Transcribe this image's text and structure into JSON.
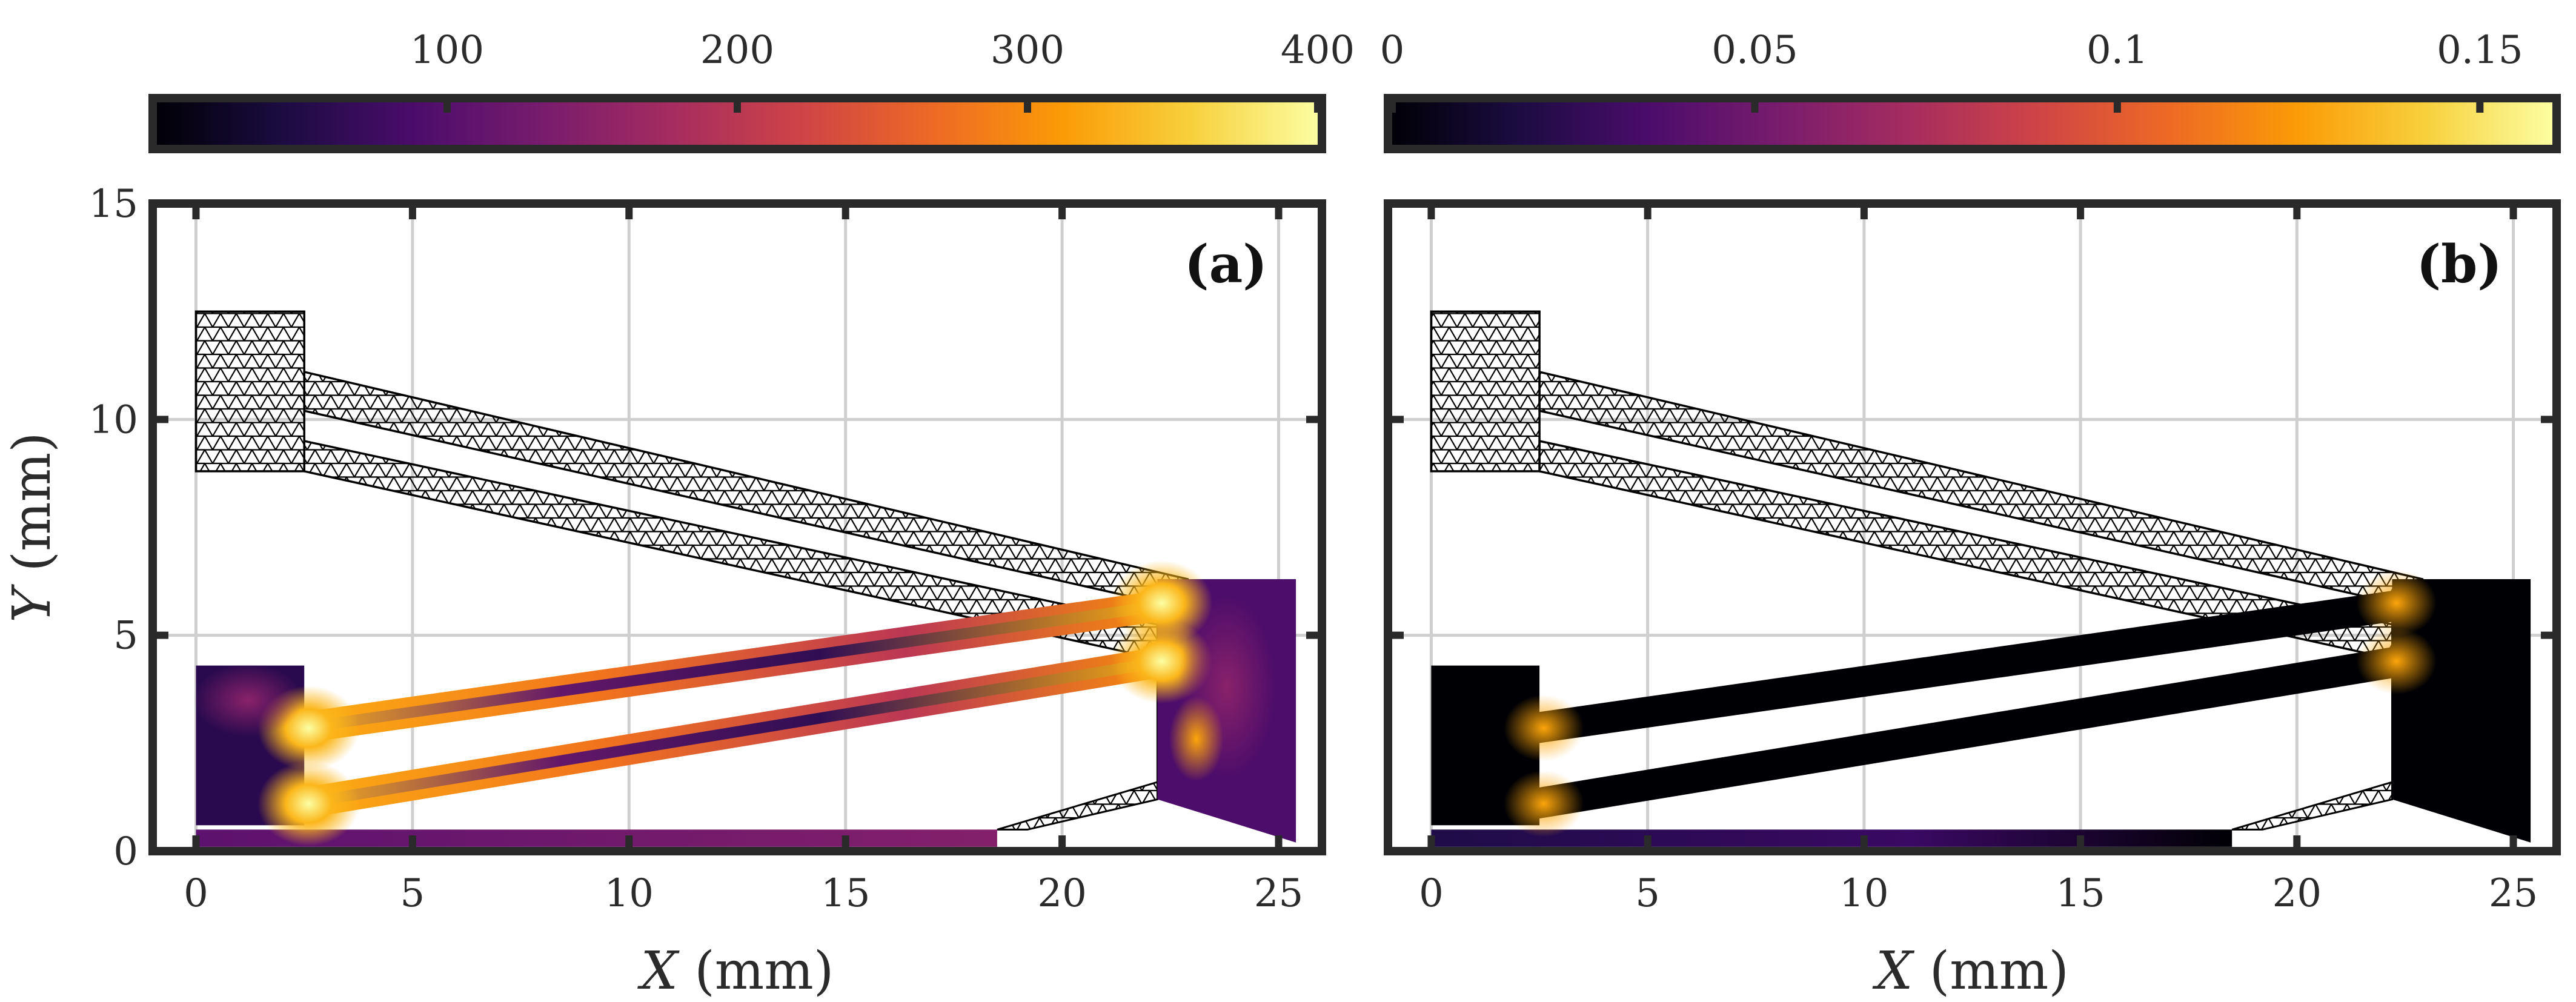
{
  "figure": {
    "description_colors": {
      "frame": "#2a2a2a",
      "grid": "#c8c8c8",
      "mesh": "#000000",
      "inferno_stops": [
        "#000004",
        "#1b0c41",
        "#4a0c6b",
        "#781c6d",
        "#a52c60",
        "#cf4446",
        "#ed6925",
        "#fb9b06",
        "#f7d13d",
        "#fcffa4"
      ]
    }
  },
  "chart_data": [
    {
      "type": "heatmap",
      "panel_label": "(a)",
      "xlabel_var": "X",
      "xlabel_unit": "(mm)",
      "ylabel_var": "Y",
      "ylabel_unit": "(mm)",
      "xlim": [
        -1,
        26
      ],
      "ylim": [
        0,
        15
      ],
      "xticks": [
        0,
        5,
        10,
        15,
        20,
        25
      ],
      "yticks": [
        0,
        5,
        10,
        15
      ],
      "grid": true,
      "colorbar": {
        "position": "top",
        "range": [
          0,
          400
        ],
        "ticks": [
          100,
          200,
          300,
          400
        ],
        "tick_labels": [
          "100",
          "200",
          "300",
          "400"
        ],
        "colormap": "inferno"
      },
      "undeformed_mesh": {
        "block": [
          [
            0,
            8.8
          ],
          [
            2.5,
            8.8
          ],
          [
            2.5,
            12.5
          ],
          [
            0,
            12.5
          ]
        ],
        "upper_beam": [
          [
            2.5,
            11.1
          ],
          [
            22.9,
            6.3
          ],
          [
            22.9,
            5.6
          ],
          [
            2.5,
            10.2
          ]
        ],
        "lower_beam": [
          [
            2.5,
            9.5
          ],
          [
            22.9,
            5.1
          ],
          [
            22.9,
            4.3
          ],
          [
            2.5,
            8.8
          ]
        ]
      },
      "deformed_shape": {
        "upper_beam_centerline": [
          [
            2.4,
            2.85
          ],
          [
            22.4,
            5.7
          ]
        ],
        "lower_beam_centerline": [
          [
            2.4,
            1.1
          ],
          [
            22.4,
            4.4
          ]
        ],
        "left_block": [
          [
            0,
            0.6
          ],
          [
            2.5,
            0.6
          ],
          [
            2.5,
            4.3
          ],
          [
            0,
            4.3
          ]
        ],
        "right_block": [
          [
            22.2,
            1.2
          ],
          [
            25.4,
            0.2
          ],
          [
            25.4,
            6.3
          ],
          [
            22.2,
            6.3
          ]
        ],
        "base_strip": [
          [
            0,
            0.1
          ],
          [
            18.5,
            0.1
          ],
          [
            18.5,
            0.5
          ],
          [
            0,
            0.5
          ]
        ]
      }
    },
    {
      "type": "heatmap",
      "panel_label": "(b)",
      "xlabel_var": "X",
      "xlabel_unit": "(mm)",
      "ylabel_var": "Y",
      "ylabel_unit": "(mm)",
      "xlim": [
        -1,
        26
      ],
      "ylim": [
        0,
        15
      ],
      "xticks": [
        0,
        5,
        10,
        15,
        20,
        25
      ],
      "yticks": [
        0,
        5,
        10,
        15
      ],
      "grid": true,
      "colorbar": {
        "position": "top",
        "range": [
          0,
          0.16
        ],
        "ticks": [
          0,
          0.05,
          0.1,
          0.15
        ],
        "tick_labels": [
          "0",
          "0.05",
          "0.1",
          "0.15"
        ],
        "colormap": "inferno"
      },
      "undeformed_mesh": {
        "block": [
          [
            0,
            8.8
          ],
          [
            2.5,
            8.8
          ],
          [
            2.5,
            12.5
          ],
          [
            0,
            12.5
          ]
        ],
        "upper_beam": [
          [
            2.5,
            11.1
          ],
          [
            22.9,
            6.3
          ],
          [
            22.9,
            5.6
          ],
          [
            2.5,
            10.2
          ]
        ],
        "lower_beam": [
          [
            2.5,
            9.5
          ],
          [
            22.9,
            5.1
          ],
          [
            22.9,
            4.3
          ],
          [
            2.5,
            8.8
          ]
        ]
      },
      "deformed_shape": {
        "upper_beam_centerline": [
          [
            2.4,
            2.85
          ],
          [
            22.4,
            5.7
          ]
        ],
        "lower_beam_centerline": [
          [
            2.4,
            1.1
          ],
          [
            22.4,
            4.4
          ]
        ],
        "left_block": [
          [
            0,
            0.6
          ],
          [
            2.5,
            0.6
          ],
          [
            2.5,
            4.3
          ],
          [
            0,
            4.3
          ]
        ],
        "right_block": [
          [
            22.2,
            1.2
          ],
          [
            25.4,
            0.2
          ],
          [
            25.4,
            6.3
          ],
          [
            22.2,
            6.3
          ]
        ],
        "base_strip": [
          [
            0,
            0.1
          ],
          [
            18.5,
            0.1
          ],
          [
            18.5,
            0.5
          ],
          [
            0,
            0.5
          ]
        ]
      }
    }
  ]
}
